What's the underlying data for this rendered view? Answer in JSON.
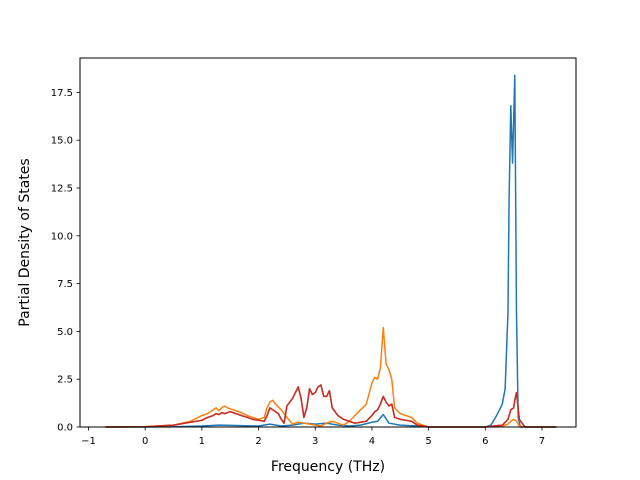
{
  "chart_data": {
    "type": "line",
    "title": "",
    "xlabel": "Frequency (THz)",
    "ylabel": "Partial Density of States",
    "xlim": [
      -1.15,
      7.6
    ],
    "ylim": [
      0,
      19.3
    ],
    "xticks": [
      -1,
      0,
      1,
      2,
      3,
      4,
      5,
      6,
      7
    ],
    "xtick_labels": [
      "−1",
      "0",
      "1",
      "2",
      "3",
      "4",
      "5",
      "6",
      "7"
    ],
    "yticks": [
      0,
      2.5,
      5,
      7.5,
      10,
      12.5,
      15,
      17.5
    ],
    "ytick_labels": [
      "0.0",
      "2.5",
      "5.0",
      "7.5",
      "10.0",
      "12.5",
      "15.0",
      "17.5"
    ],
    "grid": false,
    "legend": "none",
    "series": [
      {
        "color": "#1f77b4",
        "x": [
          -0.7,
          0.0,
          0.5,
          1.0,
          1.3,
          1.6,
          2.0,
          2.2,
          2.4,
          2.6,
          2.8,
          3.0,
          3.2,
          3.4,
          3.6,
          3.8,
          4.0,
          4.1,
          4.2,
          4.3,
          4.5,
          4.8,
          5.0,
          5.5,
          6.0,
          6.1,
          6.2,
          6.3,
          6.35,
          6.4,
          6.42,
          6.45,
          6.48,
          6.5,
          6.52,
          6.55,
          6.58,
          6.62,
          6.7,
          7.25
        ],
        "y": [
          0.0,
          0.0,
          0.01,
          0.05,
          0.1,
          0.08,
          0.05,
          0.15,
          0.05,
          0.1,
          0.2,
          0.15,
          0.2,
          0.1,
          0.05,
          0.1,
          0.25,
          0.3,
          0.65,
          0.2,
          0.1,
          0.05,
          0.0,
          0.0,
          0.0,
          0.1,
          0.6,
          1.2,
          2.0,
          6.0,
          12.0,
          16.8,
          13.8,
          16.0,
          18.4,
          6.0,
          0.5,
          0.0,
          0.0,
          0.0
        ]
      },
      {
        "color": "#ff7f0e",
        "x": [
          -0.7,
          0.0,
          0.5,
          0.8,
          1.0,
          1.1,
          1.2,
          1.25,
          1.3,
          1.35,
          1.4,
          1.45,
          1.5,
          1.6,
          1.7,
          1.8,
          1.9,
          2.0,
          2.1,
          2.15,
          2.2,
          2.25,
          2.3,
          2.4,
          2.5,
          2.6,
          2.7,
          2.8,
          2.9,
          3.0,
          3.1,
          3.2,
          3.3,
          3.4,
          3.5,
          3.6,
          3.7,
          3.8,
          3.9,
          4.0,
          4.05,
          4.1,
          4.15,
          4.2,
          4.25,
          4.3,
          4.35,
          4.4,
          4.5,
          4.6,
          4.7,
          4.8,
          5.0,
          5.5,
          6.0,
          6.3,
          6.4,
          6.45,
          6.5,
          6.55,
          6.6,
          6.7,
          7.25
        ],
        "y": [
          0.0,
          0.01,
          0.1,
          0.3,
          0.6,
          0.7,
          0.9,
          1.0,
          0.85,
          1.0,
          1.1,
          1.0,
          0.95,
          0.85,
          0.75,
          0.6,
          0.5,
          0.4,
          0.5,
          1.0,
          1.3,
          1.4,
          1.2,
          0.9,
          0.5,
          0.15,
          0.25,
          0.2,
          0.15,
          0.1,
          0.05,
          0.2,
          0.3,
          0.2,
          0.1,
          0.3,
          0.6,
          0.9,
          1.2,
          2.3,
          2.6,
          2.5,
          3.1,
          5.2,
          3.3,
          3.0,
          2.5,
          1.0,
          0.7,
          0.6,
          0.5,
          0.2,
          0.0,
          0.0,
          0.0,
          0.05,
          0.15,
          0.3,
          0.4,
          0.3,
          0.05,
          0.0,
          0.0
        ]
      },
      {
        "color": "#2ca02c",
        "x": [
          -0.7,
          0.0,
          0.5,
          1.0,
          1.1,
          1.2,
          1.25,
          1.3,
          1.35,
          1.4,
          1.45,
          1.5,
          1.6,
          1.7,
          1.8,
          1.9,
          2.0,
          2.1,
          2.15,
          2.2,
          2.25,
          2.3,
          2.35,
          2.4,
          2.45,
          2.5,
          2.55,
          2.6,
          2.65,
          2.7,
          2.75,
          2.8,
          2.85,
          2.9,
          2.95,
          3.0,
          3.05,
          3.1,
          3.15,
          3.2,
          3.25,
          3.3,
          3.35,
          3.4,
          3.5,
          3.6,
          3.7,
          3.8,
          3.9,
          4.0,
          4.05,
          4.1,
          4.15,
          4.2,
          4.25,
          4.3,
          4.35,
          4.4,
          4.5,
          4.6,
          4.7,
          4.8,
          5.0,
          5.5,
          6.0,
          6.3,
          6.4,
          6.45,
          6.5,
          6.52,
          6.55,
          6.6,
          6.7,
          7.25
        ],
        "y": [
          0.0,
          0.01,
          0.1,
          0.35,
          0.5,
          0.6,
          0.7,
          0.65,
          0.75,
          0.7,
          0.75,
          0.8,
          0.7,
          0.6,
          0.5,
          0.4,
          0.35,
          0.3,
          0.6,
          1.0,
          0.9,
          0.8,
          0.7,
          0.4,
          0.2,
          1.1,
          1.3,
          1.5,
          1.8,
          2.1,
          1.5,
          0.5,
          1.0,
          2.0,
          1.7,
          1.8,
          2.1,
          2.2,
          1.6,
          1.6,
          1.9,
          1.0,
          0.8,
          0.6,
          0.4,
          0.3,
          0.2,
          0.25,
          0.3,
          0.6,
          0.8,
          0.9,
          1.2,
          1.6,
          1.3,
          1.1,
          1.2,
          0.5,
          0.4,
          0.35,
          0.3,
          0.1,
          0.0,
          0.0,
          0.0,
          0.1,
          0.4,
          0.9,
          1.0,
          1.4,
          1.8,
          0.4,
          0.0,
          0.0
        ]
      },
      {
        "color": "#d62728",
        "x": [
          -0.7,
          0.0,
          0.5,
          1.0,
          1.1,
          1.2,
          1.25,
          1.3,
          1.35,
          1.4,
          1.45,
          1.5,
          1.6,
          1.7,
          1.8,
          1.9,
          2.0,
          2.1,
          2.15,
          2.2,
          2.25,
          2.3,
          2.35,
          2.4,
          2.45,
          2.5,
          2.55,
          2.6,
          2.65,
          2.7,
          2.75,
          2.8,
          2.85,
          2.9,
          2.95,
          3.0,
          3.05,
          3.1,
          3.15,
          3.2,
          3.25,
          3.3,
          3.35,
          3.4,
          3.5,
          3.6,
          3.7,
          3.8,
          3.9,
          4.0,
          4.05,
          4.1,
          4.15,
          4.2,
          4.25,
          4.3,
          4.35,
          4.4,
          4.5,
          4.6,
          4.7,
          4.8,
          5.0,
          5.5,
          6.0,
          6.3,
          6.4,
          6.45,
          6.5,
          6.52,
          6.55,
          6.6,
          6.7,
          7.25
        ],
        "y": [
          0.0,
          0.01,
          0.1,
          0.35,
          0.5,
          0.6,
          0.7,
          0.65,
          0.75,
          0.7,
          0.75,
          0.8,
          0.7,
          0.6,
          0.5,
          0.4,
          0.35,
          0.3,
          0.6,
          1.0,
          0.9,
          0.8,
          0.7,
          0.4,
          0.2,
          1.1,
          1.3,
          1.5,
          1.8,
          2.1,
          1.5,
          0.5,
          1.0,
          2.0,
          1.7,
          1.8,
          2.1,
          2.2,
          1.6,
          1.6,
          1.9,
          1.0,
          0.8,
          0.6,
          0.4,
          0.3,
          0.2,
          0.25,
          0.3,
          0.6,
          0.8,
          0.9,
          1.2,
          1.6,
          1.3,
          1.1,
          1.2,
          0.5,
          0.4,
          0.35,
          0.3,
          0.1,
          0.0,
          0.0,
          0.0,
          0.1,
          0.4,
          0.9,
          1.0,
          1.4,
          1.8,
          0.4,
          0.0,
          0.0
        ]
      }
    ]
  }
}
